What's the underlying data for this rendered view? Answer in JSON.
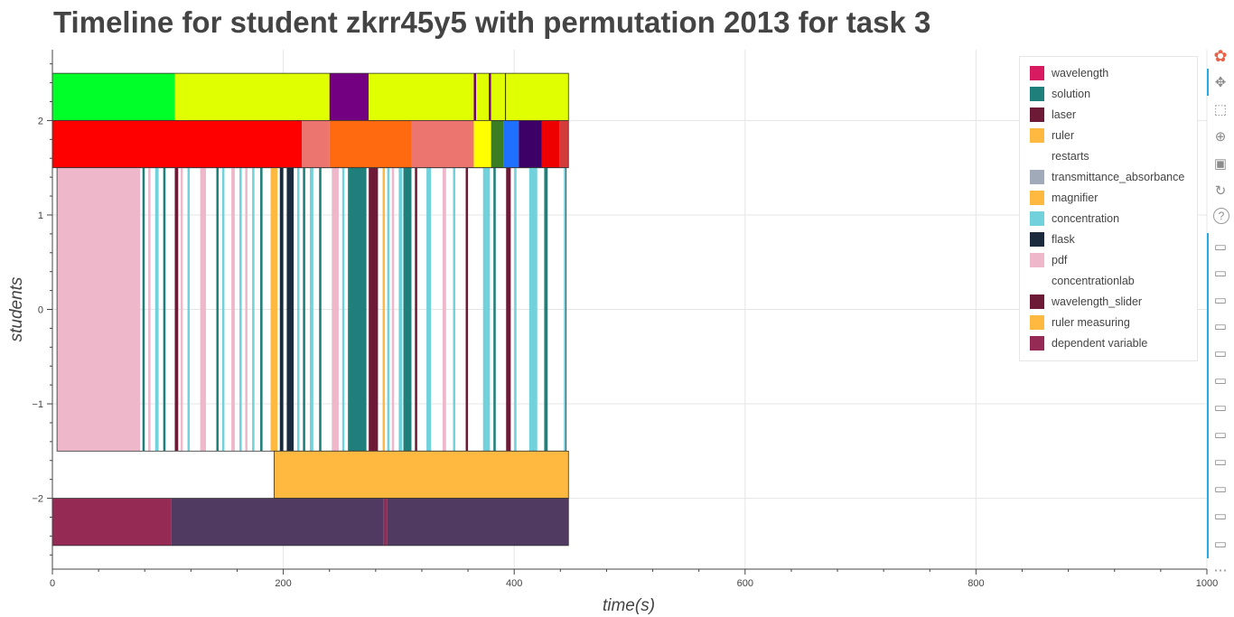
{
  "title": "Timeline for student zkrr45y5 with permutation 2013 for task 3",
  "legend": [
    {
      "label": "wavelength",
      "color": "#d81b60"
    },
    {
      "label": "solution",
      "color": "#1f7f7a"
    },
    {
      "label": "laser",
      "color": "#6d1a36"
    },
    {
      "label": "ruler",
      "color": "#ffb840"
    },
    {
      "label": "restarts",
      "color": "#ffffff"
    },
    {
      "label": "transmittance_absorbance",
      "color": "#a0aab8"
    },
    {
      "label": "magnifier",
      "color": "#ffb840"
    },
    {
      "label": "concentration",
      "color": "#72d2dc"
    },
    {
      "label": "flask",
      "color": "#1b2a3d"
    },
    {
      "label": "pdf",
      "color": "#eeb8ca"
    },
    {
      "label": "concentrationlab",
      "color": "#ffffff"
    },
    {
      "label": "wavelength_slider",
      "color": "#6d1a36"
    },
    {
      "label": "ruler measuring",
      "color": "#ffb840"
    },
    {
      "label": "dependent variable",
      "color": "#952b54"
    }
  ],
  "toolbar": [
    {
      "icon": "bokeh-logo-icon"
    },
    {
      "icon": "pan-icon"
    },
    {
      "icon": "box-zoom-icon"
    },
    {
      "icon": "wheel-zoom-icon"
    },
    {
      "icon": "save-icon"
    },
    {
      "icon": "reset-icon"
    },
    {
      "icon": "help-icon"
    },
    {
      "icon": "hover-icon"
    },
    {
      "icon": "hover-icon"
    },
    {
      "icon": "hover-icon"
    },
    {
      "icon": "hover-icon"
    },
    {
      "icon": "hover-icon"
    },
    {
      "icon": "hover-icon"
    },
    {
      "icon": "hover-icon"
    },
    {
      "icon": "hover-icon"
    },
    {
      "icon": "hover-icon"
    },
    {
      "icon": "hover-icon"
    },
    {
      "icon": "hover-icon"
    },
    {
      "icon": "hover-icon"
    },
    {
      "icon": "more-icon"
    }
  ],
  "chart_data": {
    "type": "bar",
    "title": "Timeline for student zkrr45y5 with permutation 2013 for task 3",
    "xlabel": "time(s)",
    "ylabel": "students",
    "xlim": [
      0,
      1000
    ],
    "ylim": [
      -2.75,
      2.75
    ],
    "x_ticks": [
      0,
      200,
      400,
      600,
      800,
      1000
    ],
    "y_ticks": [
      -2,
      -1,
      0,
      1,
      2
    ],
    "x_tick_labels": [
      "0",
      "200",
      "400",
      "600",
      "800",
      "1000"
    ],
    "y_tick_labels": [
      "−2",
      "−1",
      "0",
      "1",
      "2"
    ],
    "grid": true,
    "legend_position": "top-right",
    "rows": [
      {
        "y": [
          2.0,
          2.5
        ],
        "segments": [
          {
            "start": 0,
            "end": 106,
            "color": "#00ff28"
          },
          {
            "start": 106,
            "end": 240,
            "color": "#e0ff00"
          },
          {
            "start": 240,
            "end": 274,
            "color": "#720081"
          },
          {
            "start": 274,
            "end": 365,
            "color": "#e0ff00"
          },
          {
            "start": 365,
            "end": 367,
            "color": "#720081"
          },
          {
            "start": 367,
            "end": 378,
            "color": "#e0ff00"
          },
          {
            "start": 378,
            "end": 380,
            "color": "#720081"
          },
          {
            "start": 380,
            "end": 392,
            "color": "#e0ff00"
          },
          {
            "start": 392,
            "end": 393,
            "color": "#720081"
          },
          {
            "start": 393,
            "end": 447,
            "color": "#e0ff00"
          }
        ]
      },
      {
        "y": [
          1.5,
          2.0
        ],
        "segments": [
          {
            "start": 0,
            "end": 216,
            "color": "#ff0000"
          },
          {
            "start": 216,
            "end": 240,
            "color": "#ed7570"
          },
          {
            "start": 240,
            "end": 311,
            "color": "#ff6a10"
          },
          {
            "start": 311,
            "end": 365,
            "color": "#ed7570"
          },
          {
            "start": 365,
            "end": 380,
            "color": "#ffff00"
          },
          {
            "start": 380,
            "end": 391,
            "color": "#3b7d23"
          },
          {
            "start": 391,
            "end": 404,
            "color": "#1e70ff"
          },
          {
            "start": 404,
            "end": 424,
            "color": "#3d0066"
          },
          {
            "start": 424,
            "end": 439,
            "color": "#ee0000"
          },
          {
            "start": 439,
            "end": 447,
            "color": "#d43b3b"
          }
        ]
      },
      {
        "y": [
          -1.5,
          1.5
        ],
        "segments": [
          {
            "start": 4,
            "end": 76,
            "color": "#eeb8ca"
          },
          {
            "start": 78,
            "end": 80,
            "color": "#1f7f7a"
          },
          {
            "start": 83,
            "end": 85,
            "color": "#eeb8ca"
          },
          {
            "start": 89,
            "end": 92,
            "color": "#72d2dc"
          },
          {
            "start": 96,
            "end": 98,
            "color": "#1f7f7a"
          },
          {
            "start": 106,
            "end": 109,
            "color": "#6d1a36"
          },
          {
            "start": 111,
            "end": 113,
            "color": "#eeb8ca"
          },
          {
            "start": 117,
            "end": 119,
            "color": "#72d2dc"
          },
          {
            "start": 128,
            "end": 133,
            "color": "#eeb8ca"
          },
          {
            "start": 142,
            "end": 144,
            "color": "#1f7f7a"
          },
          {
            "start": 147,
            "end": 149,
            "color": "#72d2dc"
          },
          {
            "start": 155,
            "end": 158,
            "color": "#eeb8ca"
          },
          {
            "start": 162,
            "end": 164,
            "color": "#72d2dc"
          },
          {
            "start": 167,
            "end": 169,
            "color": "#eeb8ca"
          },
          {
            "start": 173,
            "end": 175,
            "color": "#72d2dc"
          },
          {
            "start": 180,
            "end": 182,
            "color": "#1f7f7a"
          },
          {
            "start": 189,
            "end": 195,
            "color": "#ffb840"
          },
          {
            "start": 197,
            "end": 200,
            "color": "#1b2a3d"
          },
          {
            "start": 203,
            "end": 209,
            "color": "#1b2a3d"
          },
          {
            "start": 212,
            "end": 214,
            "color": "#72d2dc"
          },
          {
            "start": 217,
            "end": 219,
            "color": "#1f7f7a"
          },
          {
            "start": 223,
            "end": 226,
            "color": "#72d2dc"
          },
          {
            "start": 231,
            "end": 233,
            "color": "#1f7f7a"
          },
          {
            "start": 242,
            "end": 248,
            "color": "#eeb8ca"
          },
          {
            "start": 251,
            "end": 253,
            "color": "#72d2dc"
          },
          {
            "start": 256,
            "end": 272,
            "color": "#1f7f7a"
          },
          {
            "start": 274,
            "end": 282,
            "color": "#6d1a36"
          },
          {
            "start": 286,
            "end": 288,
            "color": "#ffb840"
          },
          {
            "start": 290,
            "end": 292,
            "color": "#72d2dc"
          },
          {
            "start": 294,
            "end": 296,
            "color": "#eeb8ca"
          },
          {
            "start": 300,
            "end": 303,
            "color": "#72d2dc"
          },
          {
            "start": 304,
            "end": 311,
            "color": "#1f7f7a"
          },
          {
            "start": 314,
            "end": 316,
            "color": "#6d1a36"
          },
          {
            "start": 324,
            "end": 328,
            "color": "#72d2dc"
          },
          {
            "start": 338,
            "end": 341,
            "color": "#eeb8ca"
          },
          {
            "start": 347,
            "end": 349,
            "color": "#72d2dc"
          },
          {
            "start": 358,
            "end": 360,
            "color": "#6d1a36"
          },
          {
            "start": 373,
            "end": 379,
            "color": "#72d2dc"
          },
          {
            "start": 382,
            "end": 384,
            "color": "#1f7f7a"
          },
          {
            "start": 393,
            "end": 397,
            "color": "#6d1a36"
          },
          {
            "start": 400,
            "end": 402,
            "color": "#72d2dc"
          },
          {
            "start": 413,
            "end": 420,
            "color": "#72d2dc"
          },
          {
            "start": 426,
            "end": 429,
            "color": "#1f7f7a"
          },
          {
            "start": 443,
            "end": 445,
            "color": "#72d2dc"
          }
        ]
      },
      {
        "y": [
          -2.0,
          -1.5
        ],
        "segments": [
          {
            "start": 192,
            "end": 447,
            "color": "#ffb840"
          }
        ]
      },
      {
        "y": [
          -2.5,
          -2.0
        ],
        "segments": [
          {
            "start": 0,
            "end": 103,
            "color": "#952b54"
          },
          {
            "start": 103,
            "end": 287,
            "color": "#503a62"
          },
          {
            "start": 287,
            "end": 290,
            "color": "#952b54"
          },
          {
            "start": 290,
            "end": 447,
            "color": "#503a62"
          }
        ]
      }
    ]
  }
}
